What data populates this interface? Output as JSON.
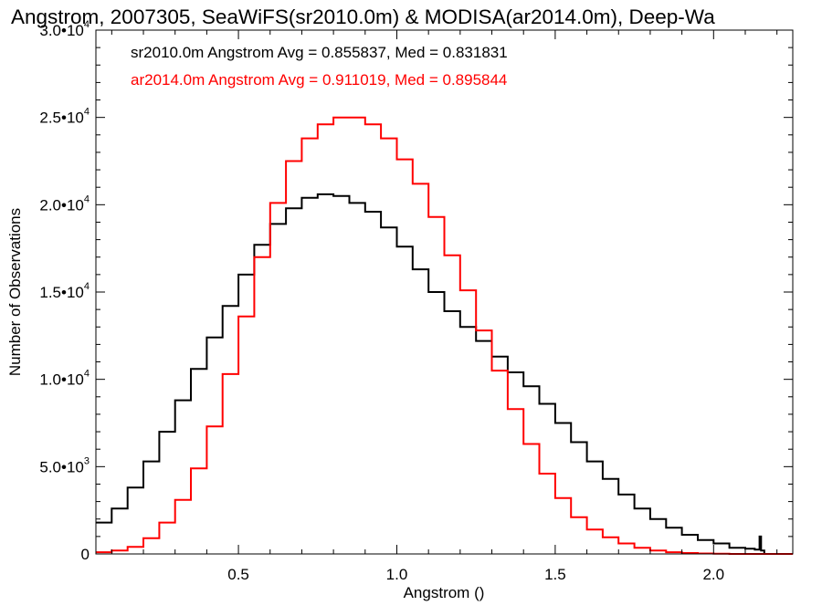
{
  "chart_data": {
    "type": "line",
    "step": true,
    "title": "Angstrom, 2007305, SeaWiFS(sr2010.0m) & MODISA(ar2014.0m), Deep-Wa",
    "xlabel": "Angstrom ()",
    "ylabel": "Number of Observations",
    "xlim": [
      0.05,
      2.25
    ],
    "ylim": [
      0,
      30000
    ],
    "x_ticks": [
      {
        "value": 0.5,
        "label": "0.5"
      },
      {
        "value": 1.0,
        "label": "1.0"
      },
      {
        "value": 1.5,
        "label": "1.5"
      },
      {
        "value": 2.0,
        "label": "2.0"
      }
    ],
    "y_ticks": [
      {
        "value": 0,
        "mant": "0",
        "exp": ""
      },
      {
        "value": 5000,
        "mant": "5.0•10",
        "exp": "3"
      },
      {
        "value": 10000,
        "mant": "1.0•10",
        "exp": "4"
      },
      {
        "value": 15000,
        "mant": "1.5•10",
        "exp": "4"
      },
      {
        "value": 20000,
        "mant": "2.0•10",
        "exp": "4"
      },
      {
        "value": 25000,
        "mant": "2.5•10",
        "exp": "4"
      },
      {
        "value": 30000,
        "mant": "3.0•10",
        "exp": "4"
      }
    ],
    "annotations": [
      {
        "text": "sr2010.0m Angstrom Avg = 0.855837, Med = 0.831831",
        "color": "#000000"
      },
      {
        "text": "ar2014.0m Angstrom Avg = 0.911019, Med = 0.895844",
        "color": "#ff0000"
      }
    ],
    "series": [
      {
        "color": "#000000",
        "x": [
          0.05,
          0.1,
          0.15,
          0.2,
          0.25,
          0.3,
          0.35,
          0.4,
          0.45,
          0.5,
          0.55,
          0.6,
          0.65,
          0.7,
          0.75,
          0.8,
          0.85,
          0.9,
          0.95,
          1.0,
          1.05,
          1.1,
          1.15,
          1.2,
          1.25,
          1.3,
          1.35,
          1.4,
          1.45,
          1.5,
          1.55,
          1.6,
          1.65,
          1.7,
          1.75,
          1.8,
          1.85,
          1.9,
          1.95,
          2.0,
          2.05,
          2.1,
          2.13,
          2.145,
          2.15,
          2.16,
          2.2,
          2.25
        ],
        "y": [
          1800,
          2600,
          3800,
          5300,
          7000,
          8800,
          10600,
          12400,
          14200,
          16000,
          17700,
          18900,
          19800,
          20400,
          20600,
          20500,
          20100,
          19600,
          18700,
          17600,
          16300,
          15000,
          13900,
          13000,
          12200,
          11300,
          10400,
          9600,
          8600,
          7500,
          6400,
          5300,
          4300,
          3400,
          2600,
          2000,
          1500,
          1100,
          800,
          600,
          350,
          300,
          250,
          1000,
          200,
          0,
          0,
          0
        ]
      },
      {
        "color": "#ff0000",
        "x": [
          0.05,
          0.1,
          0.15,
          0.2,
          0.25,
          0.3,
          0.35,
          0.4,
          0.45,
          0.5,
          0.55,
          0.6,
          0.65,
          0.7,
          0.75,
          0.8,
          0.85,
          0.9,
          0.95,
          1.0,
          1.05,
          1.1,
          1.15,
          1.2,
          1.25,
          1.3,
          1.35,
          1.4,
          1.45,
          1.5,
          1.55,
          1.6,
          1.65,
          1.7,
          1.75,
          1.8,
          1.85,
          1.9,
          1.95,
          2.0,
          2.05,
          2.1,
          2.15,
          2.2,
          2.25
        ],
        "y": [
          100,
          200,
          400,
          900,
          1800,
          3100,
          4900,
          7300,
          10300,
          13600,
          17000,
          20100,
          22500,
          23800,
          24600,
          25000,
          25000,
          24600,
          23800,
          22600,
          21200,
          19300,
          17100,
          15100,
          12800,
          10500,
          8300,
          6300,
          4600,
          3200,
          2100,
          1400,
          950,
          600,
          350,
          200,
          100,
          50,
          25,
          10,
          0,
          0,
          0,
          0,
          0
        ]
      }
    ]
  }
}
